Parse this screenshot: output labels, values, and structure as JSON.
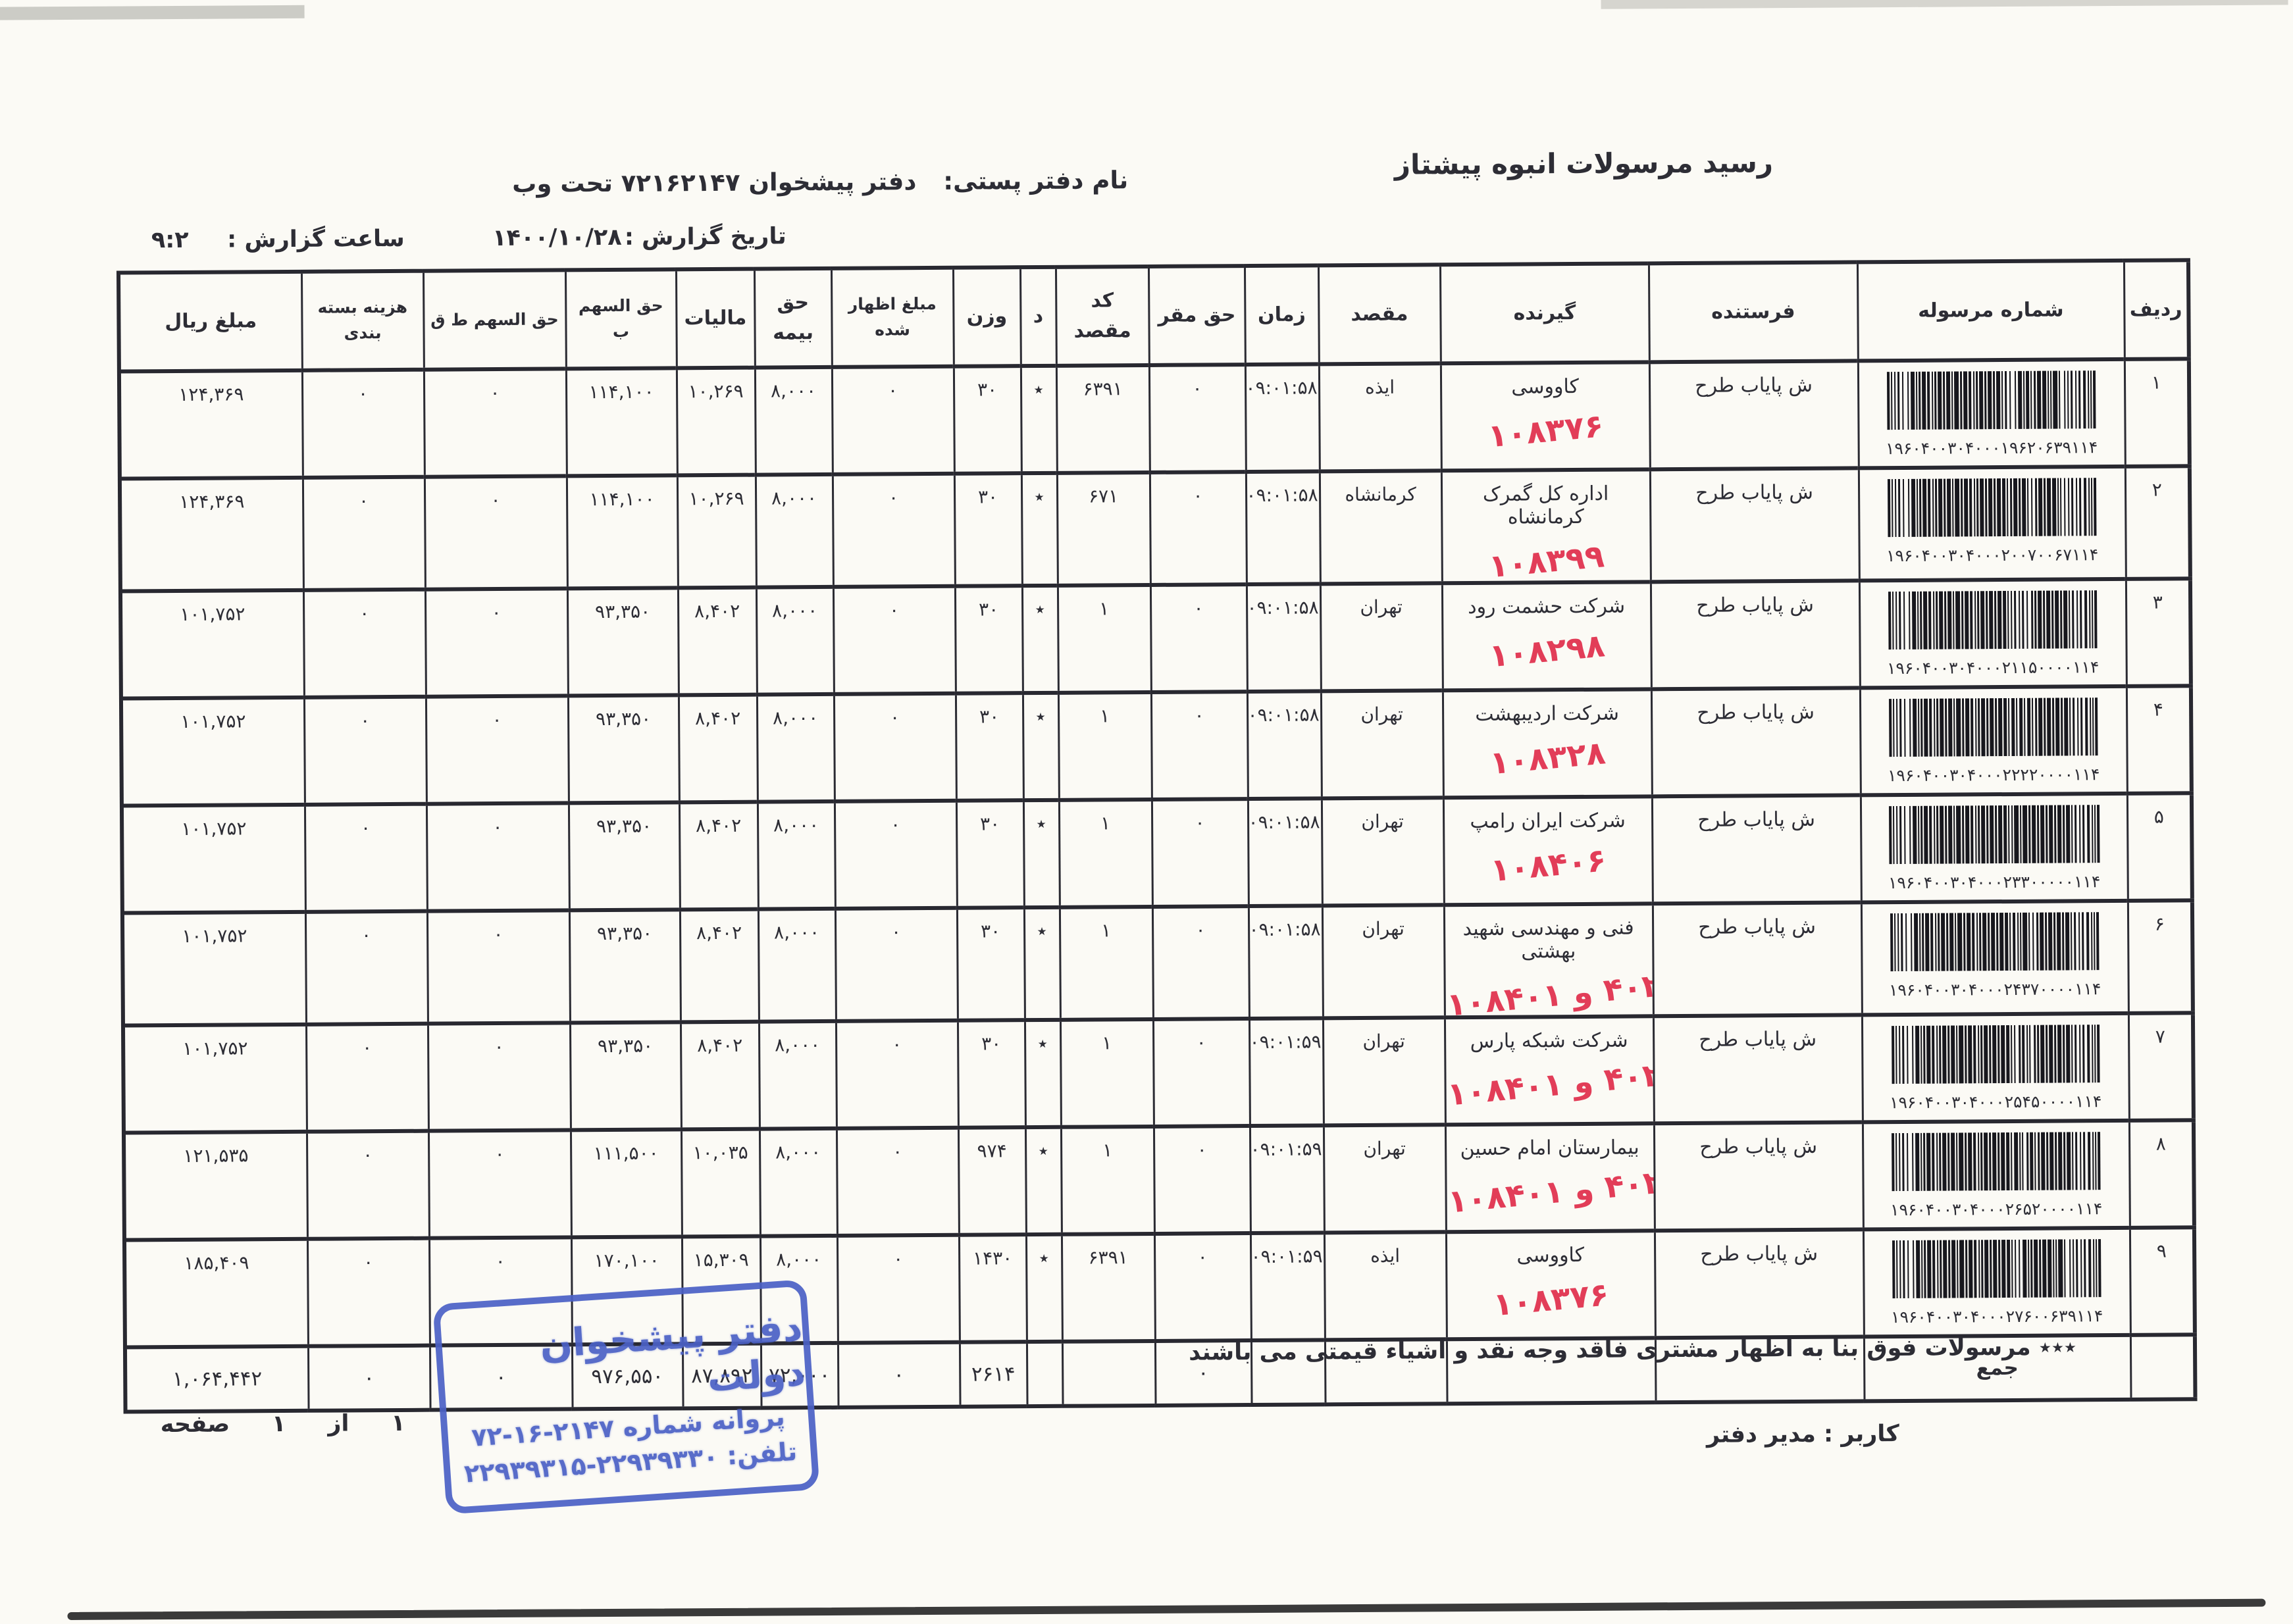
{
  "page": {
    "title": "رسید مرسولات انبوه  پیشتاز",
    "office_label": "نام دفتر پستی:",
    "office_value": "دفتر پیشخوان ۷۲۱۶۲۱۴۷ تحت وب",
    "report_date_label": "تاریخ گزارش :",
    "report_date": "۱۴۰۰/۱۰/۲۸",
    "report_time_label": "ساعت گزارش :",
    "report_time": "۹:۲"
  },
  "table": {
    "columns": [
      "ردیف",
      "شماره مرسوله",
      "فرستنده",
      "گیرنده",
      "مقصد",
      "زمان",
      "حق مقر",
      "کد مقصد",
      "د",
      "وزن",
      "مبلغ اظهار شده",
      "حق بیمه",
      "مالیات",
      "حق السهم ب",
      "حق السهم ط ق",
      "هزینه بسته بندی",
      "مبلغ ریال"
    ],
    "rows": [
      {
        "row": "۱",
        "barcode": "۱۹۶۰۴۰۰۳۰۴۰۰۰۱۹۶۲۰۶۳۹۱۱۴",
        "sender": "ش پایاب طرح",
        "receiver": "کاووسی",
        "note": "۱۰۸۳۷۶",
        "dest": "ایذه",
        "time": "۰۹:۰۱:۵۸",
        "haq_maqar": "۰",
        "dest_code": "۶۳۹۱",
        "d": "٭",
        "weight": "۳۰",
        "declared": "۰",
        "insurance": "۸,۰۰۰",
        "tax": "۱۰,۲۶۹",
        "share_p": "۱۱۴,۱۰۰",
        "share_tq": "۰",
        "packing": "۰",
        "amount": "۱۲۴,۳۶۹"
      },
      {
        "row": "۲",
        "barcode": "۱۹۶۰۴۰۰۳۰۴۰۰۰۲۰۰۷۰۰۶۷۱۱۴",
        "sender": "ش پایاب طرح",
        "receiver": "اداره کل گمرک کرمانشاه",
        "note": "۱۰۸۳۹۹",
        "dest": "کرمانشاه",
        "time": "۰۹:۰۱:۵۸",
        "haq_maqar": "۰",
        "dest_code": "۶۷۱",
        "d": "٭",
        "weight": "۳۰",
        "declared": "۰",
        "insurance": "۸,۰۰۰",
        "tax": "۱۰,۲۶۹",
        "share_p": "۱۱۴,۱۰۰",
        "share_tq": "۰",
        "packing": "۰",
        "amount": "۱۲۴,۳۶۹"
      },
      {
        "row": "۳",
        "barcode": "۱۹۶۰۴۰۰۳۰۴۰۰۰۲۱۱۵۰۰۰۰۱۱۴",
        "sender": "ش پایاب طرح",
        "receiver": "شرکت حشمت رود",
        "note": "۱۰۸۲۹۸",
        "dest": "تهران",
        "time": "۰۹:۰۱:۵۸",
        "haq_maqar": "۰",
        "dest_code": "۱",
        "d": "٭",
        "weight": "۳۰",
        "declared": "۰",
        "insurance": "۸,۰۰۰",
        "tax": "۸,۴۰۲",
        "share_p": "۹۳,۳۵۰",
        "share_tq": "۰",
        "packing": "۰",
        "amount": "۱۰۱,۷۵۲"
      },
      {
        "row": "۴",
        "barcode": "۱۹۶۰۴۰۰۳۰۴۰۰۰۲۲۲۲۰۰۰۰۱۱۴",
        "sender": "ش پایاب طرح",
        "receiver": "شرکت اردیبهشت",
        "note": "۱۰۸۳۲۸",
        "dest": "تهران",
        "time": "۰۹:۰۱:۵۸",
        "haq_maqar": "۰",
        "dest_code": "۱",
        "d": "٭",
        "weight": "۳۰",
        "declared": "۰",
        "insurance": "۸,۰۰۰",
        "tax": "۸,۴۰۲",
        "share_p": "۹۳,۳۵۰",
        "share_tq": "۰",
        "packing": "۰",
        "amount": "۱۰۱,۷۵۲"
      },
      {
        "row": "۵",
        "barcode": "۱۹۶۰۴۰۰۳۰۴۰۰۰۲۳۳۰۰۰۰۰۱۱۴",
        "sender": "ش پایاب طرح",
        "receiver": "شرکت ایران رامپ",
        "note": "۱۰۸۴۰۶",
        "dest": "تهران",
        "time": "۰۹:۰۱:۵۸",
        "haq_maqar": "۰",
        "dest_code": "۱",
        "d": "٭",
        "weight": "۳۰",
        "declared": "۰",
        "insurance": "۸,۰۰۰",
        "tax": "۸,۴۰۲",
        "share_p": "۹۳,۳۵۰",
        "share_tq": "۰",
        "packing": "۰",
        "amount": "۱۰۱,۷۵۲"
      },
      {
        "row": "۶",
        "barcode": "۱۹۶۰۴۰۰۳۰۴۰۰۰۲۴۳۷۰۰۰۰۱۱۴",
        "sender": "ش پایاب طرح",
        "receiver": "فنی و مهندسی شهید بهشتی",
        "note": "۱۰۸۴۰۱ و ۴۰۲",
        "dest": "تهران",
        "time": "۰۹:۰۱:۵۸",
        "haq_maqar": "۰",
        "dest_code": "۱",
        "d": "٭",
        "weight": "۳۰",
        "declared": "۰",
        "insurance": "۸,۰۰۰",
        "tax": "۸,۴۰۲",
        "share_p": "۹۳,۳۵۰",
        "share_tq": "۰",
        "packing": "۰",
        "amount": "۱۰۱,۷۵۲"
      },
      {
        "row": "۷",
        "barcode": "۱۹۶۰۴۰۰۳۰۴۰۰۰۲۵۴۵۰۰۰۰۱۱۴",
        "sender": "ش پایاب طرح",
        "receiver": "شرکت شبکه پارس",
        "note": "۱۰۸۴۰۱ و ۴۰۲",
        "dest": "تهران",
        "time": "۰۹:۰۱:۵۹",
        "haq_maqar": "۰",
        "dest_code": "۱",
        "d": "٭",
        "weight": "۳۰",
        "declared": "۰",
        "insurance": "۸,۰۰۰",
        "tax": "۸,۴۰۲",
        "share_p": "۹۳,۳۵۰",
        "share_tq": "۰",
        "packing": "۰",
        "amount": "۱۰۱,۷۵۲"
      },
      {
        "row": "۸",
        "barcode": "۱۹۶۰۴۰۰۳۰۴۰۰۰۲۶۵۲۰۰۰۰۱۱۴",
        "sender": "ش پایاب طرح",
        "receiver": "بیمارستان امام حسین",
        "note": "۱۰۸۴۰۱ و ۴۰۲",
        "dest": "تهران",
        "time": "۰۹:۰۱:۵۹",
        "haq_maqar": "۰",
        "dest_code": "۱",
        "d": "٭",
        "weight": "۹۷۴",
        "declared": "۰",
        "insurance": "۸,۰۰۰",
        "tax": "۱۰,۰۳۵",
        "share_p": "۱۱۱,۵۰۰",
        "share_tq": "۰",
        "packing": "۰",
        "amount": "۱۲۱,۵۳۵"
      },
      {
        "row": "۹",
        "barcode": "۱۹۶۰۴۰۰۳۰۴۰۰۰۲۷۶۰۰۶۳۹۱۱۴",
        "sender": "ش پایاب طرح",
        "receiver": "کاووسی",
        "note": "۱۰۸۳۷۶",
        "dest": "ایذه",
        "time": "۰۹:۰۱:۵۹",
        "haq_maqar": "۰",
        "dest_code": "۶۳۹۱",
        "d": "٭",
        "weight": "۱۴۳۰",
        "declared": "۰",
        "insurance": "۸,۰۰۰",
        "tax": "۱۵,۳۰۹",
        "share_p": "۱۷۰,۱۰۰",
        "share_tq": "۰",
        "packing": "۰",
        "amount": "۱۸۵,۴۰۹"
      }
    ],
    "totals": {
      "label": "جمع",
      "haq_maqar": "۰",
      "weight": "۲۶۱۴",
      "declared": "۰",
      "insurance": "۷۲,۰۰۰",
      "tax": "۸۷,۸۹۲",
      "share_p": "۹۷۶,۵۵۰",
      "share_tq": "۰",
      "packing": "۰",
      "amount": "۱,۰۶۴,۴۴۲"
    }
  },
  "footer": {
    "note": "٭٭٭ مرسولات فوق  بنا به اظهار مشتری فاقد وجه نقد و اشیاء قیمتی می باشند",
    "user": "کاربر : مدیر دفتر",
    "page_label": "صفحه",
    "page_num": "۱",
    "of_label": "از",
    "page_total": "۱"
  },
  "stamp": {
    "line1": "دفتر پیشخوان دولت",
    "line2_label": "پروانه شماره",
    "line2_number": "۷۲-۱۶-۲۱۴۷",
    "line3_label": "تلفن:",
    "line3_number": "۲۲۹۳۹۳۱۵-۲۲۹۳۹۳۳۰",
    "color": "#4b61c6"
  },
  "colors": {
    "ink": "#2d2d35",
    "table_border": "#282830",
    "handwriting_red": "#e23d58",
    "stamp_blue": "#4b61c6"
  }
}
